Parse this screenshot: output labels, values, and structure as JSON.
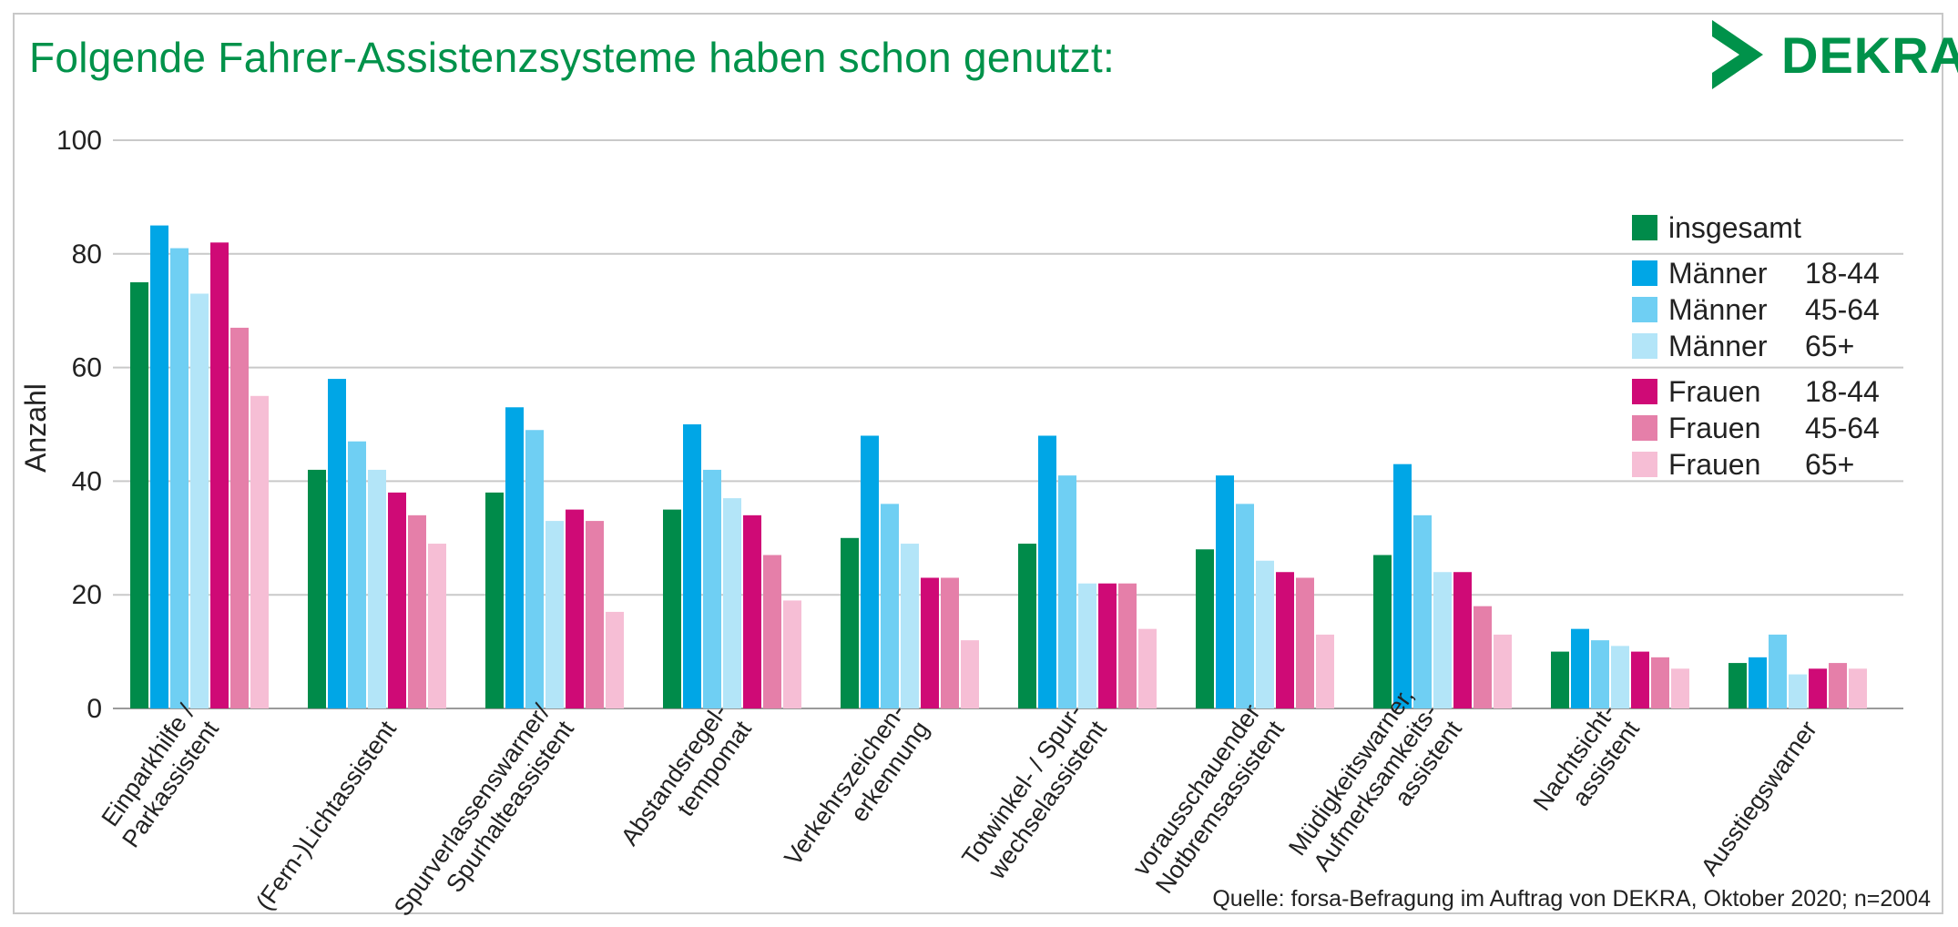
{
  "header": {
    "title": "Folgende Fahrer-Assistenzsysteme haben schon genutzt:",
    "logo_text": "DEKRA"
  },
  "footer": {
    "source": "Quelle: forsa-Befragung im Auftrag von DEKRA, Oktober 2020; n=2004"
  },
  "chart_data": {
    "type": "bar",
    "title": "Folgende Fahrer-Assistenzsysteme haben schon genutzt:",
    "ylabel": "Anzahl",
    "xlabel": "",
    "ylim": [
      0,
      100
    ],
    "yticks": [
      "0",
      "20",
      "40",
      "60",
      "80",
      "100"
    ],
    "grid": true,
    "legend_position": "top-right",
    "categories": [
      [
        "Einparkhilfe /",
        "Parkassistent"
      ],
      [
        "(Fern-)Lichtassistent"
      ],
      [
        "Spurverlassenswarner/",
        "Spurhalteassistent"
      ],
      [
        "Abstandsregel-",
        "tempomat"
      ],
      [
        "Verkehrszeichen-",
        "erkennung"
      ],
      [
        "Totwinkel- / Spur-",
        "wechselassistent"
      ],
      [
        "vorausschauender",
        "Notbremsassistent"
      ],
      [
        "Müdigkeitswarner,",
        "Aufmerksamkeits-",
        "assistent"
      ],
      [
        "Nachtsicht-",
        "assistent"
      ],
      [
        "Ausstiegswarner"
      ]
    ],
    "series": [
      {
        "name": "insgesamt",
        "age": "",
        "color": "#008b4a",
        "values": [
          75,
          42,
          38,
          35,
          30,
          29,
          28,
          27,
          10,
          8
        ]
      },
      {
        "name": "Männer",
        "age": "18-44",
        "color": "#00a6e6",
        "values": [
          85,
          58,
          53,
          50,
          48,
          48,
          41,
          43,
          14,
          9
        ]
      },
      {
        "name": "Männer",
        "age": "45-64",
        "color": "#6fcff3",
        "values": [
          81,
          47,
          49,
          42,
          36,
          41,
          36,
          34,
          12,
          13
        ]
      },
      {
        "name": "Männer",
        "age": "65+",
        "color": "#b3e5f8",
        "values": [
          73,
          42,
          33,
          37,
          29,
          22,
          26,
          24,
          11,
          6
        ]
      },
      {
        "name": "Frauen",
        "age": "18-44",
        "color": "#cf0a76",
        "values": [
          82,
          38,
          35,
          34,
          23,
          22,
          24,
          24,
          10,
          7
        ]
      },
      {
        "name": "Frauen",
        "age": "45-64",
        "color": "#e57fa9",
        "values": [
          67,
          34,
          33,
          27,
          23,
          22,
          23,
          18,
          9,
          8
        ]
      },
      {
        "name": "Frauen",
        "age": "65+",
        "color": "#f6bed5",
        "values": [
          55,
          29,
          17,
          19,
          12,
          14,
          13,
          13,
          7,
          7
        ]
      }
    ]
  }
}
